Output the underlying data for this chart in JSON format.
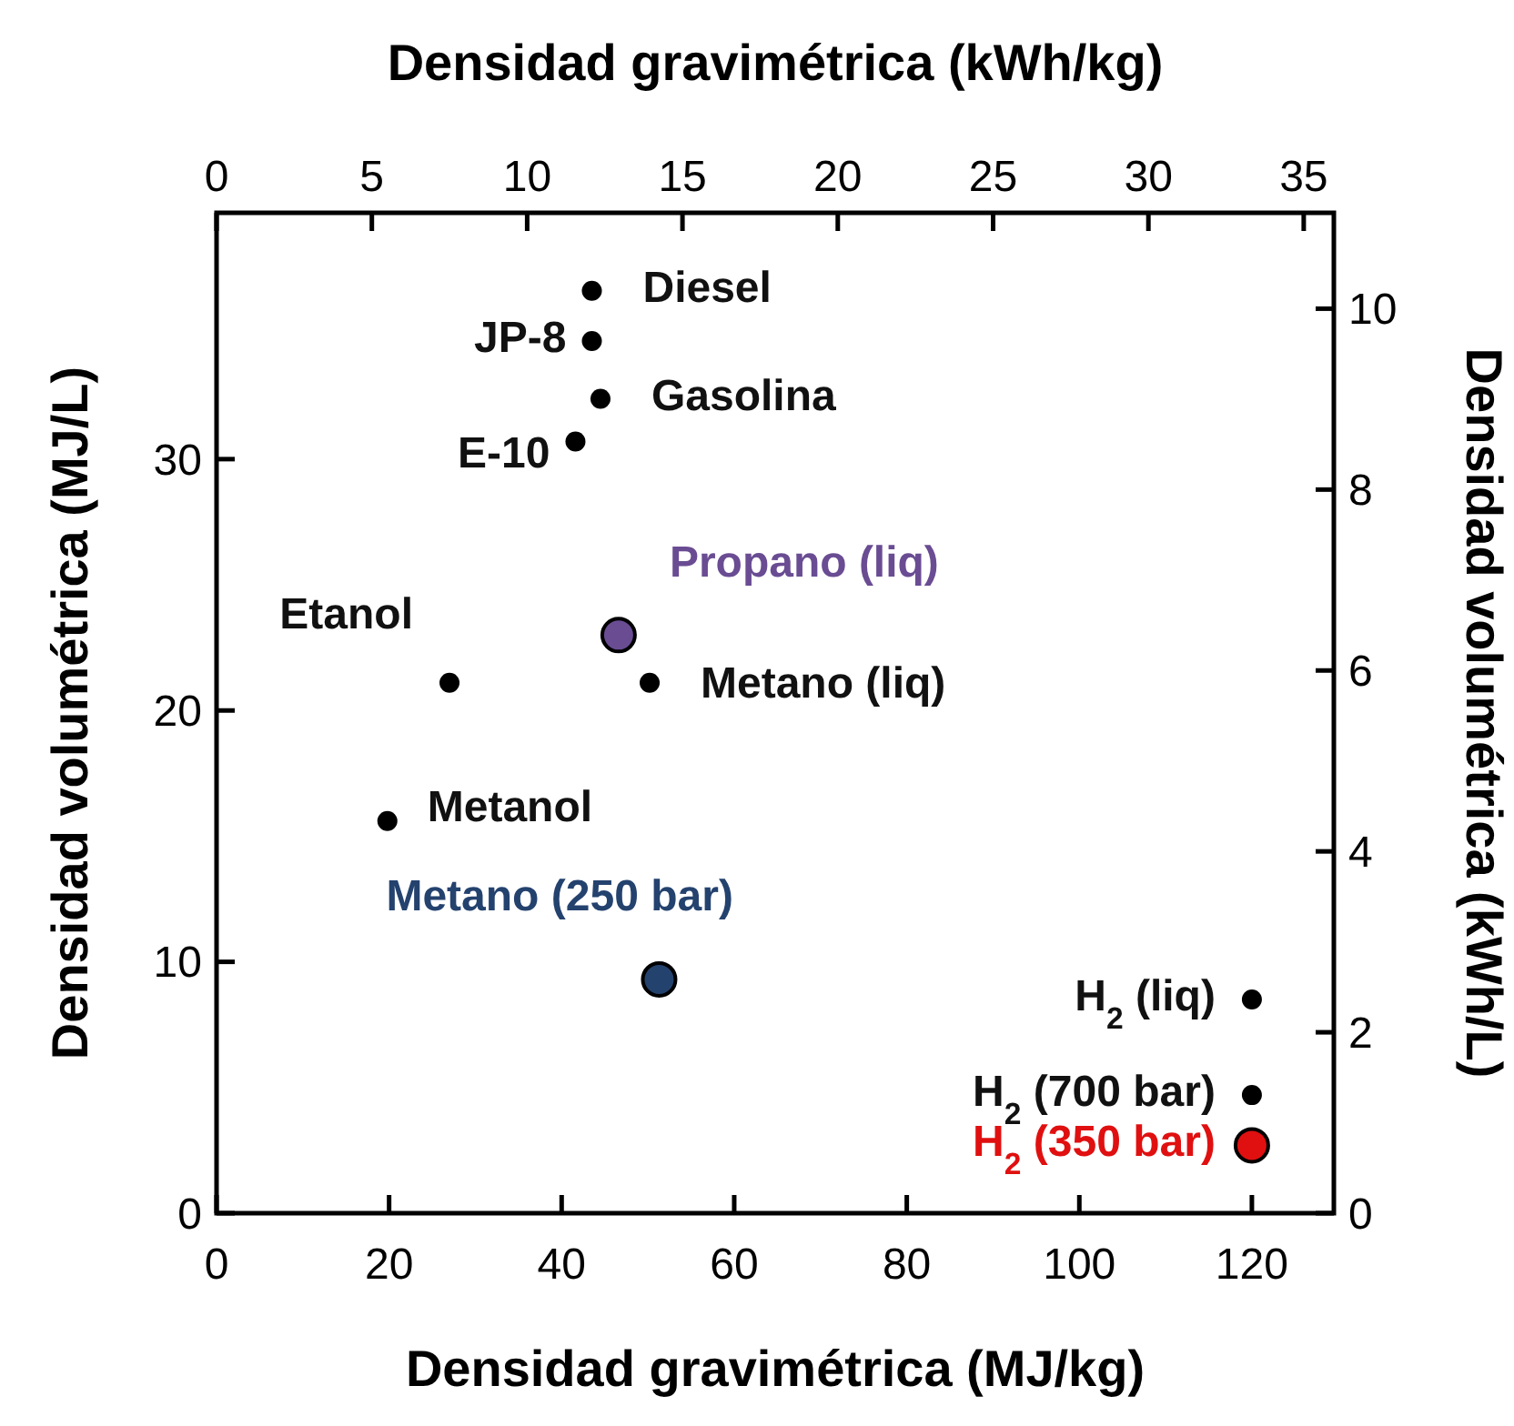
{
  "chart_data": {
    "type": "scatter",
    "xlabel": "Densidad gravimétrica (MJ/kg)",
    "x2label": "Densidad gravimétrica (kWh/kg)",
    "ylabel": "Densidad volumétrica (MJ/L)",
    "y2label": "Densidad volumétrica (kWh/L)",
    "xlim": [
      0,
      129.5
    ],
    "xticks": [
      0,
      20,
      40,
      60,
      80,
      100,
      120
    ],
    "x2lim": [
      0,
      35.97
    ],
    "x2ticks": [
      0,
      5,
      10,
      15,
      20,
      25,
      30,
      35
    ],
    "ylim": [
      0,
      39.8
    ],
    "yticks": [
      0,
      10,
      20,
      30
    ],
    "y2lim": [
      0,
      11.06
    ],
    "y2ticks": [
      0,
      2,
      4,
      6,
      8,
      10
    ],
    "marker": "circle",
    "series": [
      {
        "name": "Diesel",
        "color": "#000000",
        "x": [
          43.5
        ],
        "values": [
          36.7
        ]
      },
      {
        "name": "JP-8",
        "color": "#000000",
        "x": [
          43.5
        ],
        "values": [
          34.7
        ]
      },
      {
        "name": "Gasolina",
        "color": "#000000",
        "x": [
          44.5
        ],
        "values": [
          32.4
        ]
      },
      {
        "name": "E-10",
        "color": "#000000",
        "x": [
          41.6
        ],
        "values": [
          30.7
        ]
      },
      {
        "name": "Propano (liq)",
        "color": "#6a4c93",
        "x": [
          46.6
        ],
        "values": [
          23.0
        ]
      },
      {
        "name": "Etanol",
        "color": "#000000",
        "x": [
          27.0
        ],
        "values": [
          21.1
        ]
      },
      {
        "name": "Metano (liq)",
        "color": "#000000",
        "x": [
          50.2
        ],
        "values": [
          21.1
        ]
      },
      {
        "name": "Metanol",
        "color": "#000000",
        "x": [
          19.8
        ],
        "values": [
          15.6
        ]
      },
      {
        "name": "Metano (250 bar)",
        "color": "#24426e",
        "x": [
          51.3
        ],
        "values": [
          9.3
        ]
      },
      {
        "name": "H$_{2}$ (liq)",
        "color": "#000000",
        "x": [
          120
        ],
        "values": [
          8.5
        ]
      },
      {
        "name": "H$_{2}$ (700 bar)",
        "color": "#000000",
        "x": [
          120
        ],
        "values": [
          4.7
        ]
      },
      {
        "name": "H$_{2}$ (350 bar)",
        "color": "#e01010",
        "x": [
          120
        ],
        "values": [
          2.7
        ]
      }
    ]
  }
}
